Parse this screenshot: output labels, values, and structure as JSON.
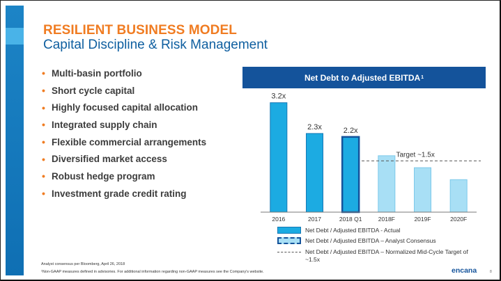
{
  "slide": {
    "title": "RESILIENT BUSINESS MODEL",
    "subtitle": "Capital Discipline & Risk Management",
    "bullets": [
      "Multi-basin portfolio",
      "Short cycle capital",
      "Highly focused capital allocation",
      "Integrated supply chain",
      "Flexible commercial arrangements",
      "Diversified market access",
      "Robust hedge program",
      "Investment grade credit rating"
    ],
    "footnote_1": "Analyst consensus per Bloomberg, April 26, 2018",
    "footnote_2": "¹Non-GAAP measures defined in advisories. For additional information regarding non-GAAP measures see the Company's website.",
    "logo_text": "encana",
    "page_number": "8",
    "colors": {
      "title_orange": "#f07c22",
      "subtitle_blue": "#0f5fa0",
      "header_navy": "#14539b",
      "actual_fill": "#1cabe2",
      "actual_border": "#1578b5",
      "consensus_fill": "#a8dff5",
      "q1_border": "#14539b"
    }
  },
  "chart_data": {
    "type": "bar",
    "title": "Net Debt to Adjusted EBITDA",
    "title_superscript": "1",
    "categories": [
      "2016",
      "2017",
      "2018 Q1",
      "2018F",
      "2019F",
      "2020F"
    ],
    "values": [
      3.2,
      2.3,
      2.2,
      1.65,
      1.3,
      0.95
    ],
    "value_labels": [
      "3.2x",
      "2.3x",
      "2.2x",
      "",
      "",
      ""
    ],
    "series_type": [
      "actual",
      "actual",
      "actual-highlight",
      "consensus",
      "consensus",
      "consensus"
    ],
    "ylim": [
      0,
      3.6
    ],
    "target_line": {
      "value": 1.5,
      "label": "Target ~1.5x"
    },
    "legend": [
      "Net Debt / Adjusted EBITDA - Actual",
      "Net Debt / Adjusted EBITDA – Analyst Consensus",
      "Net Debt / Adjusted EBITDA – Normalized Mid-Cycle Target of ~1.5x"
    ],
    "legend_placement": "bottom"
  }
}
